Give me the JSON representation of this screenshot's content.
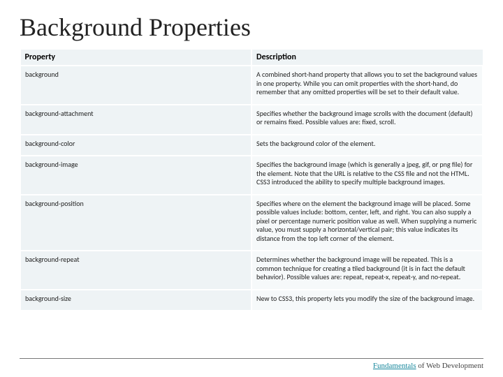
{
  "title": "Background Properties",
  "columns": {
    "property": "Property",
    "description": "Description"
  },
  "rows": [
    {
      "property": "background",
      "description": "A combined short-hand property that allows you to set the background values in one property. While you can omit properties with the short-hand, do remember that any omitted properties will be set to their default value."
    },
    {
      "property": "background-attachment",
      "description": "Specifies whether the background image scrolls with the document (default) or remains fixed. Possible values are: fixed, scroll."
    },
    {
      "property": "background-color",
      "description": "Sets the background color of the element."
    },
    {
      "property": "background-image",
      "description": "Specifies the background image (which is generally a jpeg, gif, or png file) for the element. Note that the URL is relative to the CSS file and not the HTML. CSS3 introduced the ability to specify multiple background images."
    },
    {
      "property": "background-position",
      "description": "Specifies where on the element the background image will be placed. Some possible values include: bottom, center, left, and right. You can also supply a pixel or percentage numeric position value as well. When supplying a numeric value, you must supply a horizontal/vertical pair; this value indicates its distance from the top left corner of the element."
    },
    {
      "property": "background-repeat",
      "description": "Determines whether the background image will be repeated. This is a common technique for creating a tiled background (it is in fact the default behavior). Possible values are: repeat, repeat-x, repeat-y, and no-repeat."
    },
    {
      "property": "background-size",
      "description": "New to CSS3, this property lets you modify the size of the background image."
    }
  ],
  "footer": {
    "part1": "Fundamentals",
    "part2": " of Web Development"
  },
  "colors": {
    "header_bg": "#eef3f5",
    "row_prop_bg": "#eef3f5",
    "row_desc_bg": "#f6f9fa",
    "accent": "#17879c"
  }
}
